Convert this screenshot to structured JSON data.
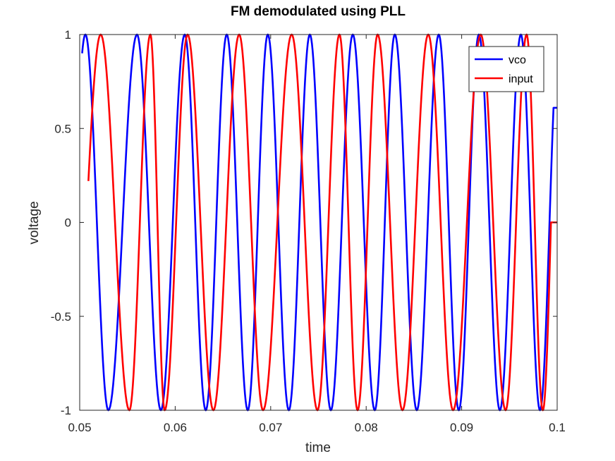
{
  "chart_data": {
    "type": "line",
    "title": "FM demodulated using PLL",
    "xlabel": "time",
    "ylabel": "voltage",
    "xlim": [
      0.05,
      0.1
    ],
    "ylim": [
      -1,
      1
    ],
    "xticks": [
      0.05,
      0.06,
      0.07,
      0.08,
      0.09,
      0.1
    ],
    "xtick_labels": [
      "0.05",
      "0.06",
      "0.07",
      "0.08",
      "0.09",
      "0.1"
    ],
    "yticks": [
      -1,
      -0.5,
      0,
      0.5,
      1
    ],
    "ytick_labels": [
      "-1",
      "-0.5",
      "0",
      "0.5",
      "1"
    ],
    "grid": false,
    "legend_position": "top-right",
    "series": [
      {
        "name": "vco",
        "color": "#0000ff",
        "peaks_x": [
          0.0506,
          0.056,
          0.061,
          0.0654,
          0.0697,
          0.0741,
          0.0786,
          0.083,
          0.0876,
          0.0918,
          0.0962
        ],
        "troughs_x": [
          0.053,
          0.0585,
          0.0632,
          0.0676,
          0.0719,
          0.0763,
          0.0809,
          0.0853,
          0.0897,
          0.094,
          0.0982
        ],
        "start": [
          0.05,
          0.9
        ],
        "end": [
          0.1,
          0.61
        ]
      },
      {
        "name": "input",
        "color": "#ff0000",
        "peaks_x": [
          0.0522,
          0.0574,
          0.0613,
          0.0667,
          0.0722,
          0.0772,
          0.0812,
          0.0865,
          0.092,
          0.0968
        ],
        "troughs_x": [
          0.0552,
          0.0589,
          0.064,
          0.0692,
          0.0749,
          0.0791,
          0.0838,
          0.0891,
          0.0946,
          0.0985
        ],
        "start": [
          0.05,
          0.22
        ],
        "end": [
          0.1,
          0.0
        ]
      }
    ]
  }
}
